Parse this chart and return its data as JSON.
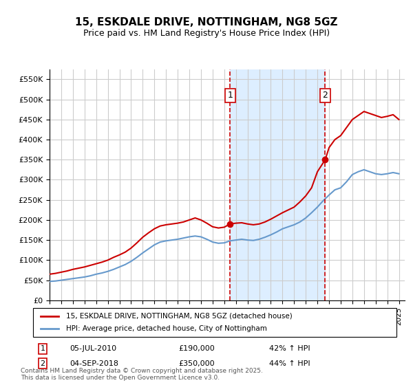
{
  "title": "15, ESKDALE DRIVE, NOTTINGHAM, NG8 5GZ",
  "subtitle": "Price paid vs. HM Land Registry's House Price Index (HPI)",
  "background_color": "#ffffff",
  "plot_bg_color": "#ffffff",
  "grid_color": "#cccccc",
  "shaded_region_color": "#ddeeff",
  "xlabel": "",
  "ylabel": "",
  "ylim": [
    0,
    575000
  ],
  "xlim_start": 1995.0,
  "xlim_end": 2025.5,
  "yticks": [
    0,
    50000,
    100000,
    150000,
    200000,
    250000,
    300000,
    350000,
    400000,
    450000,
    500000,
    550000
  ],
  "ytick_labels": [
    "£0",
    "£50K",
    "£100K",
    "£150K",
    "£200K",
    "£250K",
    "£300K",
    "£350K",
    "£400K",
    "£450K",
    "£500K",
    "£550K"
  ],
  "transaction1_x": 2010.5,
  "transaction1_y": 190000,
  "transaction1_label": "1",
  "transaction1_date": "05-JUL-2010",
  "transaction1_price": "£190,000",
  "transaction1_hpi": "42% ↑ HPI",
  "transaction2_x": 2018.67,
  "transaction2_y": 350000,
  "transaction2_label": "2",
  "transaction2_date": "04-SEP-2018",
  "transaction2_price": "£350,000",
  "transaction2_hpi": "44% ↑ HPI",
  "red_line_color": "#cc0000",
  "blue_line_color": "#6699cc",
  "marker_box_color": "#cc0000",
  "dashed_line_color": "#cc0000",
  "legend_label1": "15, ESKDALE DRIVE, NOTTINGHAM, NG8 5GZ (detached house)",
  "legend_label2": "HPI: Average price, detached house, City of Nottingham",
  "footnote": "Contains HM Land Registry data © Crown copyright and database right 2025.\nThis data is licensed under the Open Government Licence v3.0.",
  "red_x": [
    1995,
    1995.5,
    1996,
    1996.5,
    1997,
    1997.5,
    1998,
    1998.5,
    1999,
    1999.5,
    2000,
    2000.5,
    2001,
    2001.5,
    2002,
    2002.5,
    2003,
    2003.5,
    2004,
    2004.5,
    2005,
    2005.5,
    2006,
    2006.5,
    2007,
    2007.5,
    2008,
    2008.5,
    2009,
    2009.5,
    2010,
    2010.5,
    2011,
    2011.5,
    2012,
    2012.5,
    2013,
    2013.5,
    2014,
    2014.5,
    2015,
    2015.5,
    2016,
    2016.5,
    2017,
    2017.5,
    2018,
    2018.67,
    2019,
    2019.5,
    2020,
    2020.5,
    2021,
    2021.5,
    2022,
    2022.5,
    2023,
    2023.5,
    2024,
    2024.5,
    2025
  ],
  "red_y": [
    65000,
    67000,
    70000,
    73000,
    77000,
    80000,
    83000,
    87000,
    91000,
    95000,
    100000,
    107000,
    113000,
    120000,
    130000,
    143000,
    157000,
    168000,
    178000,
    185000,
    188000,
    190000,
    192000,
    195000,
    200000,
    205000,
    200000,
    192000,
    183000,
    180000,
    182000,
    190000,
    192000,
    193000,
    190000,
    188000,
    190000,
    195000,
    202000,
    210000,
    218000,
    225000,
    232000,
    245000,
    260000,
    280000,
    320000,
    350000,
    380000,
    400000,
    410000,
    430000,
    450000,
    460000,
    470000,
    465000,
    460000,
    455000,
    458000,
    462000,
    450000
  ],
  "blue_x": [
    1995,
    1995.5,
    1996,
    1996.5,
    1997,
    1997.5,
    1998,
    1998.5,
    1999,
    1999.5,
    2000,
    2000.5,
    2001,
    2001.5,
    2002,
    2002.5,
    2003,
    2003.5,
    2004,
    2004.5,
    2005,
    2005.5,
    2006,
    2006.5,
    2007,
    2007.5,
    2008,
    2008.5,
    2009,
    2009.5,
    2010,
    2010.5,
    2011,
    2011.5,
    2012,
    2012.5,
    2013,
    2013.5,
    2014,
    2014.5,
    2015,
    2015.5,
    2016,
    2016.5,
    2017,
    2017.5,
    2018,
    2018.5,
    2019,
    2019.5,
    2020,
    2020.5,
    2021,
    2021.5,
    2022,
    2022.5,
    2023,
    2023.5,
    2024,
    2024.5,
    2025
  ],
  "blue_y": [
    47000,
    48000,
    50000,
    52000,
    54000,
    56000,
    58000,
    61000,
    65000,
    68000,
    72000,
    77000,
    83000,
    89000,
    97000,
    107000,
    118000,
    128000,
    138000,
    145000,
    148000,
    150000,
    152000,
    155000,
    158000,
    160000,
    158000,
    152000,
    145000,
    142000,
    143000,
    148000,
    150000,
    152000,
    150000,
    149000,
    152000,
    157000,
    163000,
    170000,
    178000,
    183000,
    188000,
    195000,
    205000,
    218000,
    232000,
    248000,
    262000,
    275000,
    280000,
    295000,
    313000,
    320000,
    325000,
    320000,
    315000,
    313000,
    315000,
    318000,
    315000
  ]
}
